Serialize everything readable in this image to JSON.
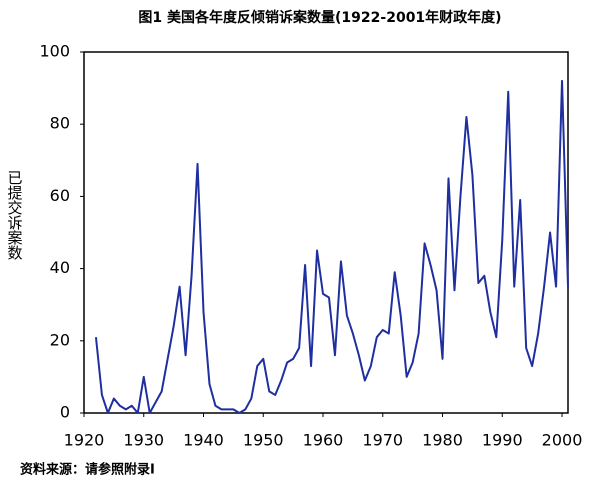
{
  "chart_data": {
    "type": "line",
    "title": "图1 美国各年度反倾销诉案数量(1922-2001年财政年度)",
    "y_label": "已提交诉案数",
    "note": "资料来源：请参照附录I",
    "x": [
      1922,
      1923,
      1924,
      1925,
      1926,
      1927,
      1928,
      1929,
      1930,
      1931,
      1932,
      1933,
      1934,
      1935,
      1936,
      1937,
      1938,
      1939,
      1940,
      1941,
      1942,
      1943,
      1944,
      1945,
      1946,
      1947,
      1948,
      1949,
      1950,
      1951,
      1952,
      1953,
      1954,
      1955,
      1956,
      1957,
      1958,
      1959,
      1960,
      1961,
      1962,
      1963,
      1964,
      1965,
      1966,
      1967,
      1968,
      1969,
      1970,
      1971,
      1972,
      1973,
      1974,
      1975,
      1976,
      1977,
      1978,
      1979,
      1980,
      1981,
      1982,
      1983,
      1984,
      1985,
      1986,
      1987,
      1988,
      1989,
      1990,
      1991,
      1992,
      1993,
      1994,
      1995,
      1996,
      1997,
      1998,
      1999,
      2000,
      2001
    ],
    "series": [
      {
        "name": "诉案数",
        "color": "#1f2fa0",
        "values": [
          21,
          5,
          0,
          4,
          2,
          1,
          2,
          0,
          10,
          0,
          3,
          6,
          15,
          24,
          35,
          16,
          38,
          69,
          28,
          8,
          2,
          1,
          1,
          1,
          0,
          1,
          4,
          13,
          15,
          6,
          5,
          9,
          14,
          15,
          18,
          41,
          13,
          45,
          33,
          32,
          16,
          42,
          27,
          22,
          16,
          9,
          13,
          21,
          23,
          22,
          39,
          27,
          10,
          14,
          22,
          47,
          41,
          34,
          15,
          65,
          34,
          60,
          82,
          66,
          36,
          38,
          28,
          21,
          48,
          89,
          35,
          59,
          18,
          13,
          22,
          35,
          50,
          35,
          92,
          35
        ]
      }
    ],
    "xlim": [
      1920,
      2001
    ],
    "xticks": [
      1920,
      1930,
      1940,
      1950,
      1960,
      1970,
      1980,
      1990,
      2000
    ],
    "ylim": [
      0,
      100
    ],
    "yticks": [
      0,
      20,
      40,
      60,
      80,
      100
    ]
  }
}
